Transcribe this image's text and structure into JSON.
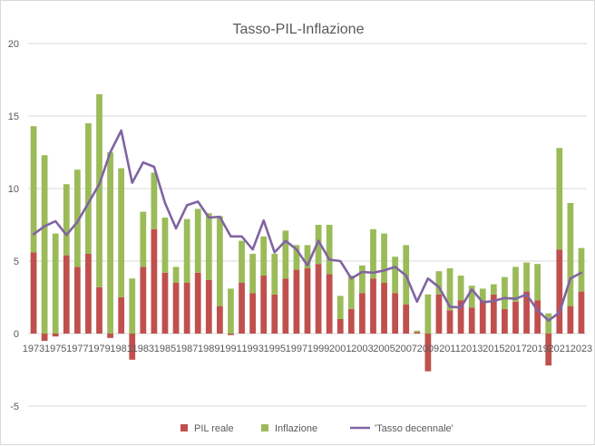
{
  "chart_data": {
    "type": "bar",
    "stacked": true,
    "title": "Tasso-PIL-Inflazione",
    "xlabel": "",
    "ylabel": "",
    "ylim": [
      -5,
      20
    ],
    "yticks": [
      -5,
      0,
      5,
      10,
      15,
      20
    ],
    "grid": true,
    "legend_position": "bottom",
    "x": [
      1973,
      1974,
      1975,
      1976,
      1977,
      1978,
      1979,
      1980,
      1981,
      1982,
      1983,
      1984,
      1985,
      1986,
      1987,
      1988,
      1989,
      1990,
      1991,
      1992,
      1993,
      1994,
      1995,
      1996,
      1997,
      1998,
      1999,
      2000,
      2001,
      2002,
      2003,
      2004,
      2005,
      2006,
      2007,
      2008,
      2009,
      2010,
      2011,
      2012,
      2013,
      2014,
      2015,
      2016,
      2017,
      2018,
      2019,
      2020,
      2021,
      2022,
      2023
    ],
    "x_tick_labels": [
      "1973",
      "1975",
      "1977",
      "1979",
      "1981",
      "1983",
      "1985",
      "1987",
      "1989",
      "1991",
      "1993",
      "1995",
      "1997",
      "1999",
      "2001",
      "2003",
      "2005",
      "2007",
      "2009",
      "2011",
      "2013",
      "2015",
      "2017",
      "2019",
      "2021",
      "2023"
    ],
    "series": [
      {
        "name": "PIL reale",
        "kind": "bar",
        "color": "#c0504d",
        "values": [
          5.6,
          -0.5,
          -0.2,
          5.4,
          4.6,
          5.5,
          3.2,
          -0.3,
          2.5,
          -1.8,
          4.6,
          7.2,
          4.2,
          3.5,
          3.5,
          4.2,
          3.7,
          1.9,
          -0.1,
          3.5,
          2.8,
          4.0,
          2.7,
          3.8,
          4.4,
          4.5,
          4.8,
          4.1,
          1.0,
          1.7,
          2.8,
          3.8,
          3.5,
          2.8,
          2.0,
          0.1,
          -2.6,
          2.7,
          1.6,
          2.3,
          1.8,
          2.3,
          2.7,
          1.7,
          2.2,
          2.9,
          2.3,
          -2.2,
          5.8,
          1.9,
          2.9
        ]
      },
      {
        "name": "Inflazione",
        "kind": "bar",
        "color": "#9bbb59",
        "values": [
          8.7,
          12.3,
          6.9,
          4.9,
          6.7,
          9.0,
          13.3,
          12.5,
          8.9,
          3.8,
          3.8,
          3.9,
          3.8,
          1.1,
          4.4,
          4.4,
          4.6,
          6.2,
          3.1,
          2.9,
          2.7,
          2.7,
          2.8,
          3.3,
          1.7,
          1.6,
          2.7,
          3.4,
          1.6,
          2.3,
          1.9,
          3.4,
          3.4,
          2.5,
          4.1,
          0.1,
          2.7,
          1.6,
          2.9,
          1.7,
          1.5,
          0.8,
          0.7,
          2.2,
          2.4,
          2.0,
          2.5,
          1.4,
          7.0,
          7.1,
          3.0
        ]
      },
      {
        "name": "'Tasso decennale'",
        "kind": "line",
        "color": "#8064a2",
        "values": [
          6.85,
          7.4,
          7.75,
          6.8,
          7.7,
          9.0,
          10.3,
          12.5,
          14.0,
          10.4,
          11.8,
          11.5,
          9.0,
          7.25,
          8.85,
          9.1,
          8.0,
          8.05,
          6.7,
          6.7,
          5.8,
          7.8,
          5.6,
          6.4,
          5.8,
          4.7,
          6.4,
          5.1,
          5.0,
          3.8,
          4.25,
          4.2,
          4.35,
          4.6,
          4.0,
          2.2,
          3.8,
          3.2,
          1.85,
          1.8,
          3.05,
          2.15,
          2.25,
          2.45,
          2.4,
          2.7,
          1.6,
          0.9,
          1.45,
          3.8,
          4.2
        ]
      }
    ]
  }
}
